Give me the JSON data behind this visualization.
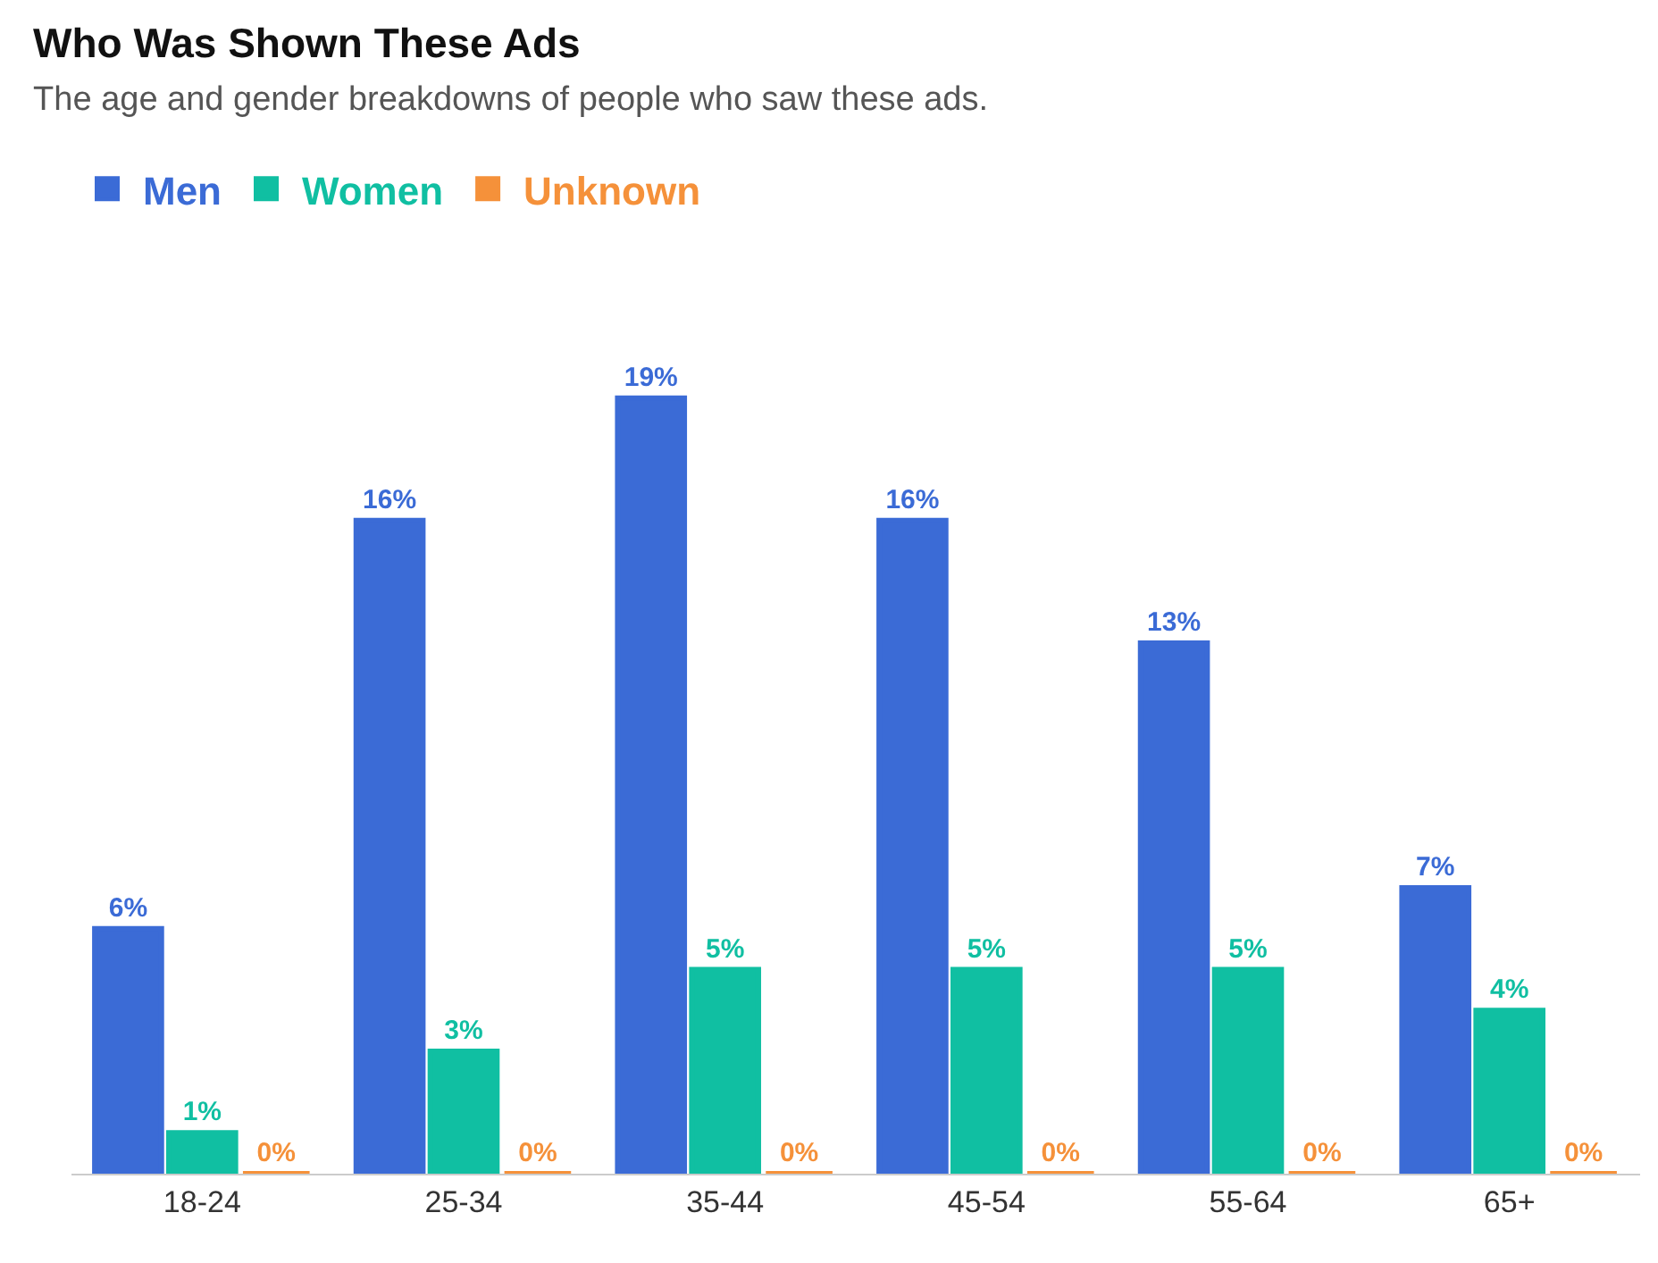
{
  "chart_data": {
    "type": "bar",
    "title": "Who Was Shown These Ads",
    "subtitle": "The age and gender breakdowns of people who saw these ads.",
    "categories": [
      "18-24",
      "25-34",
      "35-44",
      "45-54",
      "55-64",
      "65+"
    ],
    "series": [
      {
        "name": "Men",
        "color": "#3b6bd6",
        "values": [
          6,
          16,
          19,
          16,
          13,
          7
        ],
        "value_labels": [
          "6%",
          "16%",
          "19%",
          "16%",
          "13%",
          "7%"
        ]
      },
      {
        "name": "Women",
        "color": "#10bfa2",
        "values": [
          1,
          3,
          5,
          5,
          5,
          4
        ],
        "value_labels": [
          "1%",
          "3%",
          "5%",
          "5%",
          "5%",
          "4%"
        ]
      },
      {
        "name": "Unknown",
        "color": "#f5913a",
        "values": [
          0,
          0,
          0,
          0,
          0,
          0
        ],
        "value_labels": [
          "0%",
          "0%",
          "0%",
          "0%",
          "0%",
          "0%"
        ]
      }
    ],
    "tick_labels": "x",
    "legend": "top left"
  }
}
